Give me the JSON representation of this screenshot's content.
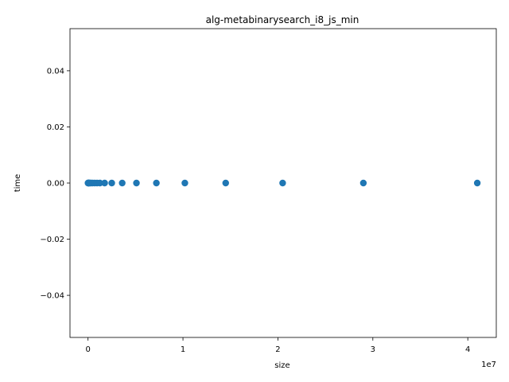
{
  "chart_data": {
    "type": "scatter",
    "title": "alg-metabinarysearch_i8_js_min",
    "xlabel": "size",
    "ylabel": "time",
    "x_offset_text": "1e7",
    "xlim": [
      -1900000,
      43000000
    ],
    "ylim": [
      -0.055,
      0.055
    ],
    "x_ticks": [
      {
        "value": 0,
        "label": "0"
      },
      {
        "value": 10000000,
        "label": "1"
      },
      {
        "value": 20000000,
        "label": "2"
      },
      {
        "value": 30000000,
        "label": "3"
      },
      {
        "value": 40000000,
        "label": "4"
      }
    ],
    "y_ticks": [
      {
        "value": -0.04,
        "label": "−0.04"
      },
      {
        "value": -0.02,
        "label": "−0.02"
      },
      {
        "value": 0.0,
        "label": "0.00"
      },
      {
        "value": 0.02,
        "label": "0.02"
      },
      {
        "value": 0.04,
        "label": "0.04"
      }
    ],
    "grid": false,
    "marker_color": "#1f77b4",
    "series": [
      {
        "x": [
          0,
          10000,
          30000,
          60000,
          100000,
          150000,
          220000,
          330000,
          480000,
          700000,
          950000,
          1250000,
          1750000,
          2500000,
          3600000,
          5100000,
          7200000,
          10200000,
          14500000,
          20500000,
          29000000,
          41000000
        ],
        "y": [
          0,
          0,
          0,
          0,
          0,
          0,
          0,
          0,
          0,
          0,
          0,
          0,
          0,
          0,
          0,
          0,
          0,
          0,
          0,
          0,
          0,
          0
        ]
      }
    ]
  }
}
